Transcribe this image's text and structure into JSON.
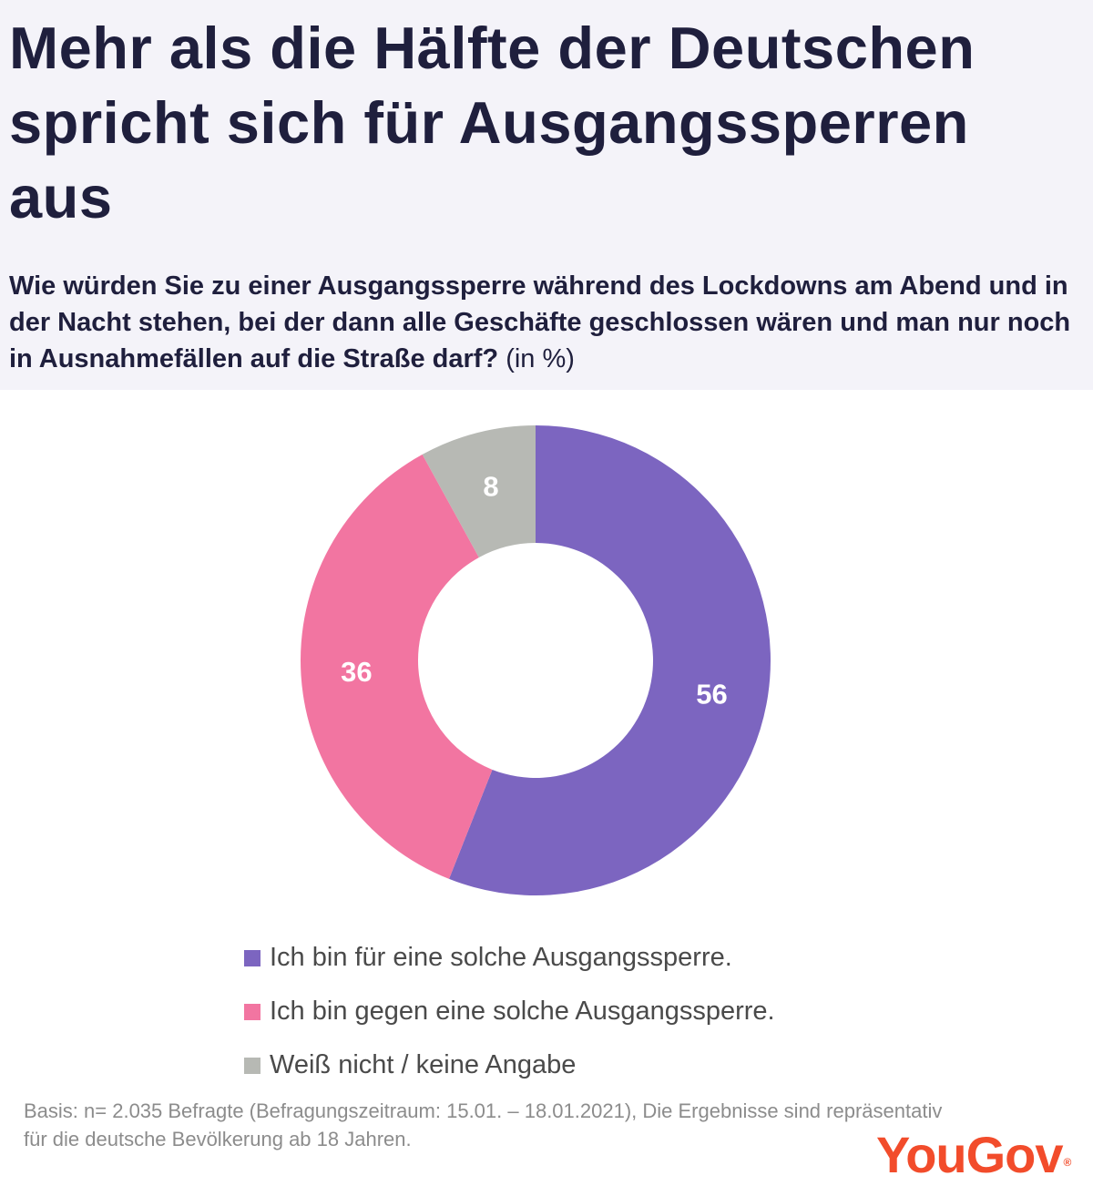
{
  "title": "Mehr als die Hälfte der Deutschen spricht sich für Ausgangssperren aus",
  "subtitle": {
    "question": "Wie würden Sie zu einer Ausgangssperre während des Lockdowns am Abend und in der Nacht stehen, bei der dann alle Geschäfte geschlossen wären und man nur noch in Ausnahmefällen auf die Straße darf?",
    "unit": "(in %)"
  },
  "chart_data": {
    "type": "pie",
    "variant": "donut",
    "title": "Mehr als die Hälfte der Deutschen spricht sich für Ausgangssperren aus",
    "categories": [
      "Ich bin für eine solche Ausgangssperre.",
      "Ich bin gegen eine solche Ausgangssperre.",
      "Weiß nicht / keine Angabe"
    ],
    "values": [
      56,
      36,
      8
    ],
    "value_labels": [
      "56",
      "36",
      "8"
    ],
    "colors": [
      "#7c65c0",
      "#f275a1",
      "#b7b9b4"
    ],
    "unit": "%",
    "legend_position": "bottom"
  },
  "footnote": "Basis: n= 2.035 Befragte (Befragungszeitraum: 15.01. – 18.01.2021), Die Ergebnisse sind repräsentativ für die deutsche Bevölkerung ab 18 Jahren.",
  "logo": {
    "text": "YouGov",
    "mark": "®"
  }
}
